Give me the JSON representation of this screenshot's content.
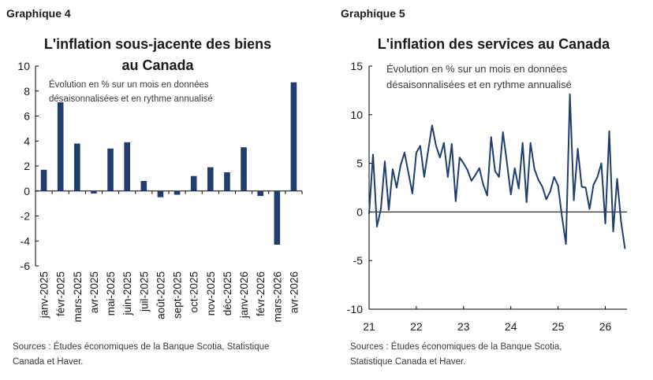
{
  "colors": {
    "series": "#1f3e6e",
    "axis": "#000000",
    "text": "#1a1a1a",
    "muted": "#3a3a3a"
  },
  "left": {
    "header": "Graphique 4",
    "title_line1": "L'inflation sous-jacente des biens",
    "title_line2": "au Canada",
    "subtitle_line1": "Évolution en % sur un mois en données",
    "subtitle_line2": "désaisonnalisées et en rythme annualisé",
    "source_line1": "Sources : Études économiques de la Banque Scotia, Statistique",
    "source_line2": "Canada et Haver."
  },
  "right": {
    "header": "Graphique 5",
    "title_line1": "L'inflation des services au Canada",
    "subtitle_line1": "Évolution en % sur un mois en données",
    "subtitle_line2": "désaisonnalisées et en rythme annualisé",
    "source_line1": "Sources : Études économiques de la Banque Scotia,",
    "source_line2": "Statistique Canada et Haver."
  },
  "chart_data": [
    {
      "type": "bar",
      "categories": [
        "janv-2025",
        "févr-2025",
        "mars-2025",
        "avr-2025",
        "mai-2025",
        "juin-2025",
        "juil-2025",
        "août-2025",
        "sept-2025",
        "oct-2025",
        "nov-2025",
        "déc-2025",
        "janv-2026",
        "févr-2026",
        "mars-2026",
        "avr-2026"
      ],
      "values": [
        1.7,
        7.1,
        3.8,
        -0.2,
        3.4,
        3.9,
        0.8,
        -0.5,
        -0.3,
        1.2,
        1.9,
        1.5,
        3.5,
        -0.4,
        -4.3,
        8.7
      ],
      "yticks": [
        10,
        8,
        6,
        4,
        2,
        0,
        -2,
        -4,
        -6
      ],
      "ylim": [
        -6,
        10
      ],
      "grid": false
    },
    {
      "type": "line",
      "x_ticks": [
        "21",
        "22",
        "23",
        "24",
        "25",
        "26"
      ],
      "yticks": [
        15,
        10,
        5,
        0,
        -5,
        -10
      ],
      "ylim": [
        -10,
        15
      ],
      "x_start": "2021-01",
      "grid": false,
      "values": [
        -0.2,
        5.9,
        -1.5,
        0.3,
        5.2,
        0.2,
        4.4,
        2.5,
        4.8,
        6.1,
        4.0,
        1.9,
        6.1,
        6.8,
        3.6,
        6.3,
        8.9,
        6.8,
        5.6,
        7.1,
        3.6,
        7.0,
        1.1,
        5.6,
        5.0,
        4.3,
        3.2,
        3.8,
        4.5,
        2.8,
        1.7,
        7.7,
        4.2,
        3.6,
        8.2,
        5.1,
        1.8,
        4.5,
        2.4,
        7.1,
        1.0,
        7.1,
        4.4,
        3.3,
        2.6,
        1.3,
        2.1,
        3.6,
        2.7,
        -0.5,
        -3.3,
        12.1,
        1.2,
        6.5,
        2.6,
        2.5,
        0.3,
        2.8,
        3.6,
        5.0,
        -1.2,
        8.3,
        -2.0,
        3.4,
        -1.0,
        -3.8
      ]
    }
  ]
}
